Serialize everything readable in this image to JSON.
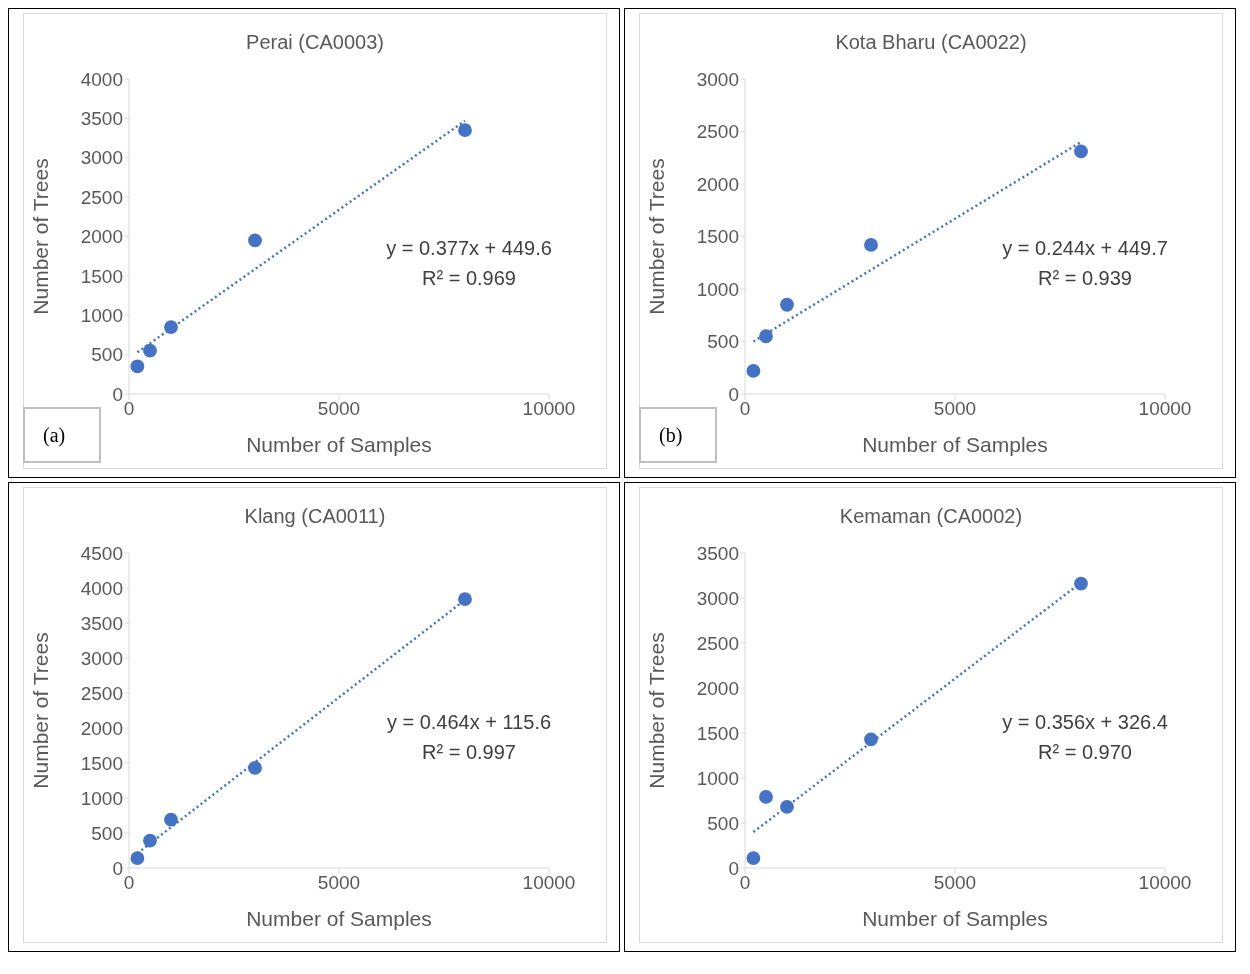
{
  "chart_data": [
    {
      "type": "scatter",
      "title": "Perai (CA0003)",
      "xlabel": "Number of Samples",
      "ylabel": "Number of Trees",
      "xlim": [
        0,
        10000
      ],
      "xticks": [
        0,
        5000,
        10000
      ],
      "ylim": [
        0,
        4000
      ],
      "yticks": [
        0,
        500,
        1000,
        1500,
        2000,
        2500,
        3000,
        3500,
        4000
      ],
      "grid": false,
      "legend": false,
      "annotations": [
        "y = 0.377x + 449.6",
        "R² = 0.969",
        "(a)"
      ],
      "series": [
        {
          "type": "scatter",
          "marker": "circle",
          "color": "#4472c4",
          "x": [
            200,
            500,
            1000,
            3000,
            8000
          ],
          "values": [
            350,
            550,
            850,
            1950,
            3350
          ]
        },
        {
          "type": "line",
          "marker": "none",
          "line_style": "dotted",
          "color": "#4472c4",
          "x": [
            200,
            8000
          ],
          "values": [
            530,
            3470
          ]
        }
      ]
    },
    {
      "type": "scatter",
      "title": "Kota Bharu (CA0022)",
      "xlabel": "Number of Samples",
      "ylabel": "Number of Trees",
      "xlim": [
        0,
        10000
      ],
      "xticks": [
        0,
        5000,
        10000
      ],
      "ylim": [
        0,
        3000
      ],
      "yticks": [
        0,
        500,
        1000,
        1500,
        2000,
        2500,
        3000
      ],
      "grid": false,
      "legend": false,
      "annotations": [
        "y = 0.244x + 449.7",
        "R² = 0.939",
        "(b)"
      ],
      "series": [
        {
          "type": "scatter",
          "marker": "circle",
          "color": "#4472c4",
          "x": [
            200,
            500,
            1000,
            3000,
            8000
          ],
          "values": [
            220,
            550,
            850,
            1420,
            2310
          ]
        },
        {
          "type": "line",
          "marker": "none",
          "line_style": "dotted",
          "color": "#4472c4",
          "x": [
            200,
            8000
          ],
          "values": [
            500,
            2400
          ]
        }
      ]
    },
    {
      "type": "scatter",
      "title": "Klang (CA0011)",
      "xlabel": "Number of Samples",
      "ylabel": "Number of Trees",
      "xlim": [
        0,
        10000
      ],
      "xticks": [
        0,
        5000,
        10000
      ],
      "ylim": [
        0,
        4500
      ],
      "yticks": [
        0,
        500,
        1000,
        1500,
        2000,
        2500,
        3000,
        3500,
        4000,
        4500
      ],
      "grid": false,
      "legend": false,
      "annotations": [
        "y = 0.464x + 115.6",
        "R² = 0.997"
      ],
      "series": [
        {
          "type": "scatter",
          "marker": "circle",
          "color": "#4472c4",
          "x": [
            200,
            500,
            1000,
            3000,
            8000
          ],
          "values": [
            140,
            390,
            690,
            1430,
            3840
          ]
        },
        {
          "type": "line",
          "marker": "none",
          "line_style": "dotted",
          "color": "#4472c4",
          "x": [
            200,
            8000
          ],
          "values": [
            210,
            3830
          ]
        }
      ]
    },
    {
      "type": "scatter",
      "title": "Kemaman (CA0002)",
      "xlabel": "Number of Samples",
      "ylabel": "Number of Trees",
      "xlim": [
        0,
        10000
      ],
      "xticks": [
        0,
        5000,
        10000
      ],
      "ylim": [
        0,
        3500
      ],
      "yticks": [
        0,
        500,
        1000,
        1500,
        2000,
        2500,
        3000,
        3500
      ],
      "grid": false,
      "legend": false,
      "annotations": [
        "y = 0.356x + 326.4",
        "R² = 0.970"
      ],
      "series": [
        {
          "type": "scatter",
          "marker": "circle",
          "color": "#4472c4",
          "x": [
            200,
            500,
            1000,
            3000,
            8000
          ],
          "values": [
            110,
            790,
            680,
            1430,
            3160
          ]
        },
        {
          "type": "line",
          "marker": "none",
          "line_style": "dotted",
          "color": "#4472c4",
          "x": [
            200,
            8000
          ],
          "values": [
            400,
            3170
          ]
        }
      ]
    }
  ]
}
